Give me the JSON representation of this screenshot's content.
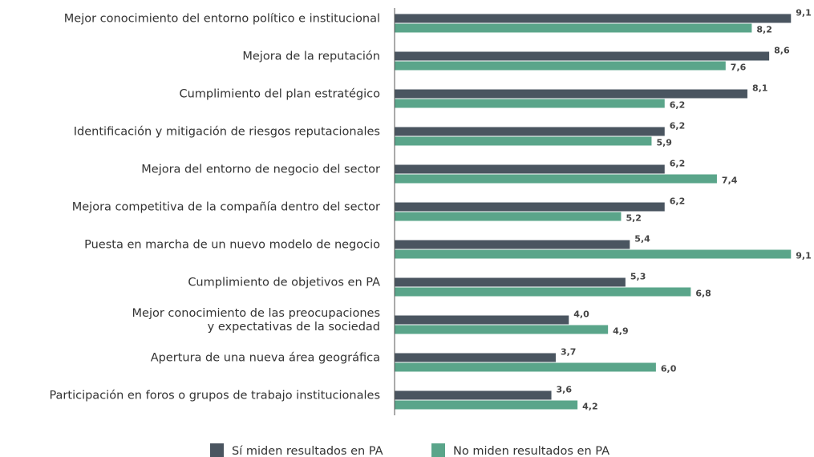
{
  "chart_data": {
    "type": "bar",
    "orientation": "horizontal",
    "categories": [
      "Mejor conocimiento del entorno político e institucional",
      "Mejora de la reputación",
      "Cumplimiento del plan estratégico",
      "Identificación y mitigación de riesgos reputacionales",
      "Mejora del entorno de negocio del sector",
      "Mejora competitiva de la compañía dentro del sector",
      "Puesta en marcha de un nuevo modelo de negocio",
      "Cumplimiento de objetivos en PA",
      "Mejor conocimiento de las preocupaciones\ny expectativas de la sociedad",
      "Apertura de una nueva área geográfica",
      "Participación en foros o grupos de trabajo institucionales"
    ],
    "series": [
      {
        "name": "Sí miden resultados en PA",
        "color": "#4a5560",
        "values": [
          9.1,
          8.6,
          8.1,
          6.2,
          6.2,
          6.2,
          5.4,
          5.3,
          4.0,
          3.7,
          3.6
        ],
        "value_labels": [
          "9,1",
          "8,6",
          "8,1",
          "6,2",
          "6,2",
          "6,2",
          "5,4",
          "5,3",
          "4,0",
          "3,7",
          "3,6"
        ]
      },
      {
        "name": "No miden resultados en PA",
        "color": "#5aa58a",
        "values": [
          8.2,
          7.6,
          6.2,
          5.9,
          7.4,
          5.2,
          9.1,
          6.8,
          4.9,
          6.0,
          4.2
        ],
        "value_labels": [
          "8,2",
          "7,6",
          "6,2",
          "5,9",
          "7,4",
          "5,2",
          "9,1",
          "6,8",
          "4,9",
          "6,0",
          "4,2"
        ]
      }
    ],
    "xlim": [
      0,
      9.5
    ],
    "legend": "bottom"
  }
}
